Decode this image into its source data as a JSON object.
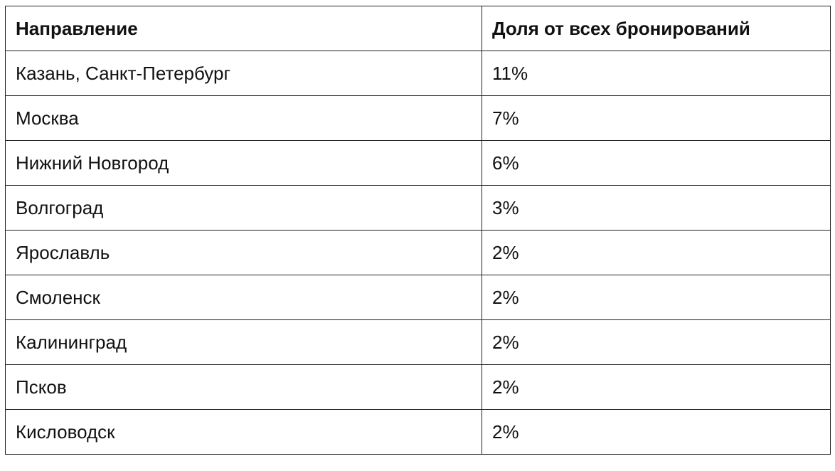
{
  "table": {
    "header": [
      "Направление",
      "Доля от всех бронирований"
    ],
    "rows": [
      [
        "Казань, Санкт-Петербург",
        "11%"
      ],
      [
        "Москва",
        "7%"
      ],
      [
        "Нижний Новгород",
        "6%"
      ],
      [
        "Волгоград",
        "3%"
      ],
      [
        "Ярославль",
        "2%"
      ],
      [
        "Смоленск",
        "2%"
      ],
      [
        "Калининград",
        "2%"
      ],
      [
        "Псков",
        "2%"
      ],
      [
        "Кисловодск",
        "2%"
      ]
    ]
  }
}
